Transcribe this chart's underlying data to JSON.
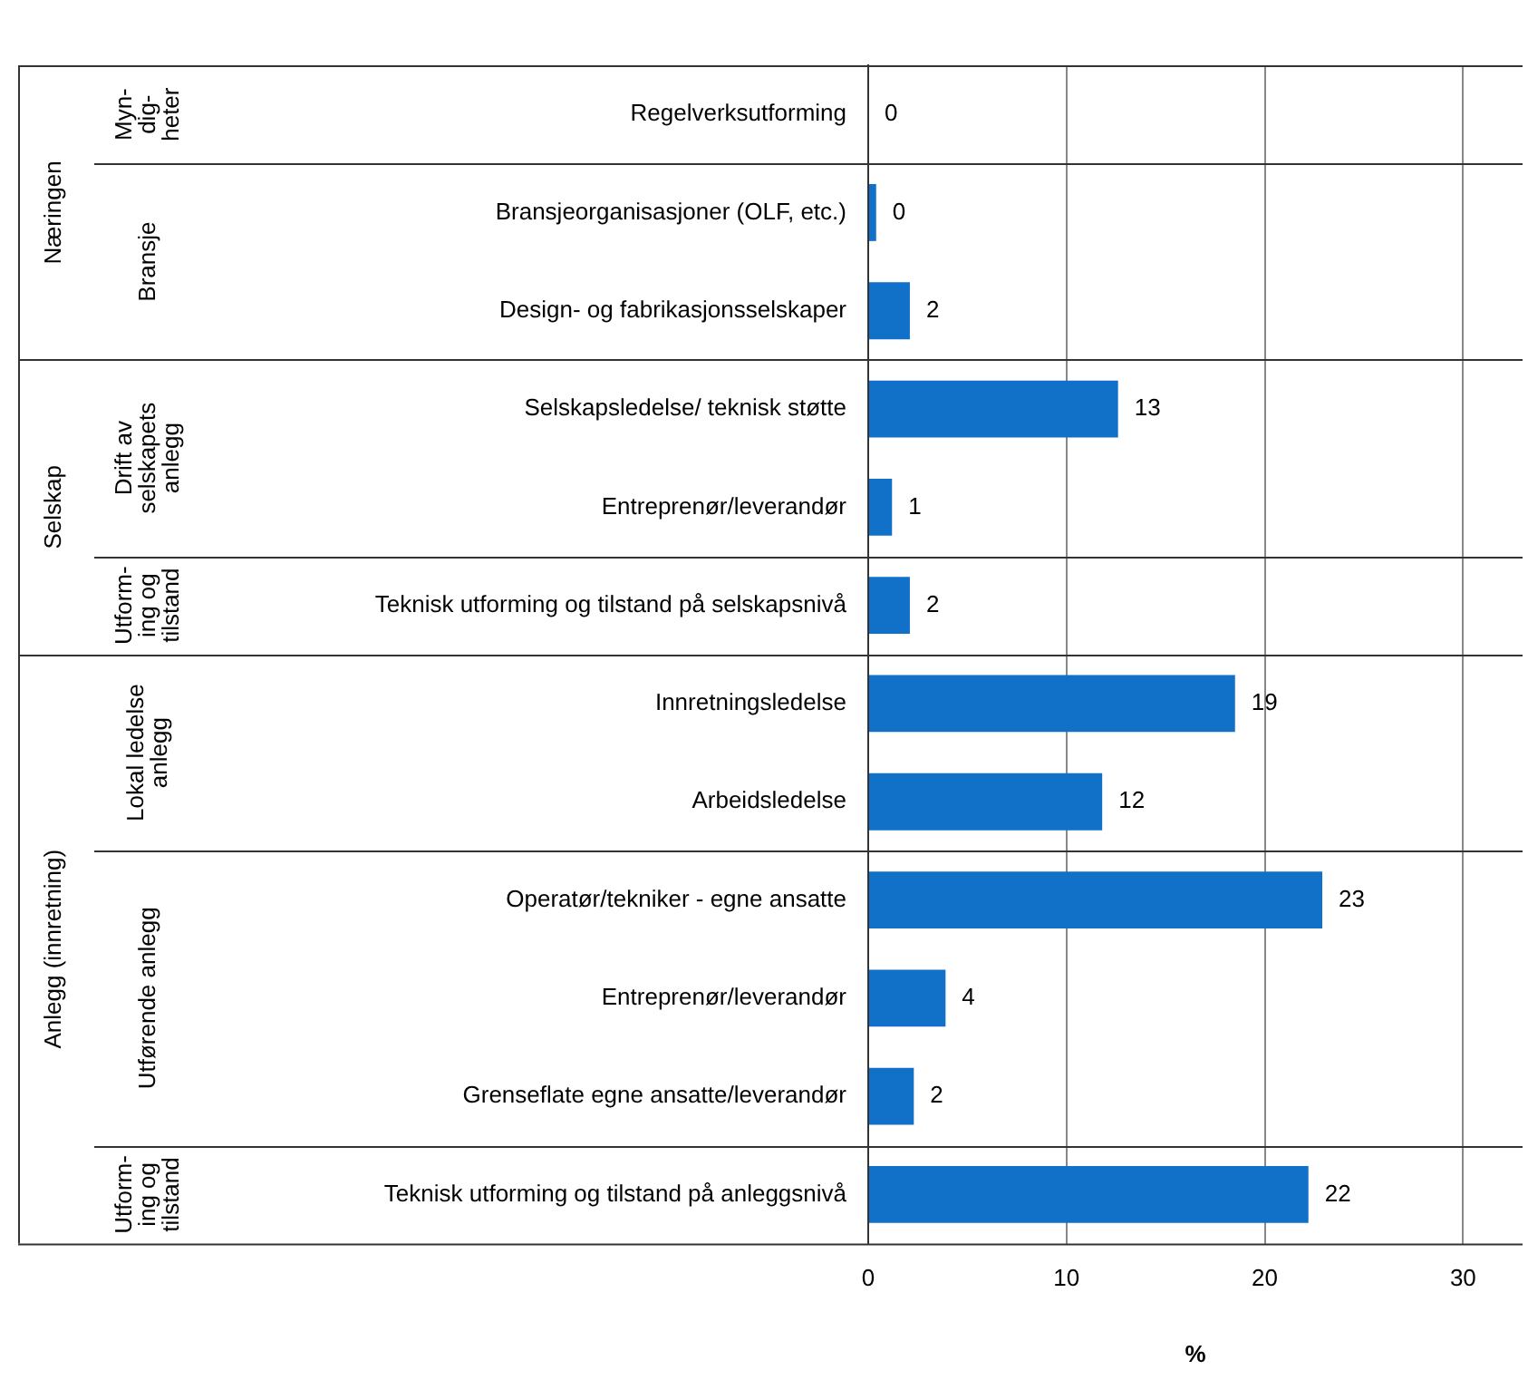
{
  "chart_data": {
    "type": "bar",
    "orientation": "horizontal",
    "categories": [
      "Regelverksutforming",
      "Bransjeorganisasjoner (OLF, etc.)",
      "Design- og fabrikasjonsselskaper",
      "Selskapsledelse/ teknisk støtte",
      "Entreprenør/leverandør",
      "Teknisk utforming og tilstand på selskapsnivå",
      "Innretningsledelse",
      "Arbeidsledelse",
      "Operatør/tekniker - egne ansatte",
      "Entreprenør/leverandør",
      "Grenseflate egne ansatte/leverandør",
      "Teknisk utforming og tilstand på anleggsnivå"
    ],
    "values": [
      0,
      0.4,
      2.1,
      12.6,
      1.2,
      2.1,
      18.5,
      11.8,
      22.9,
      3.9,
      2.3,
      22.2
    ],
    "value_labels": [
      "0",
      "0",
      "2",
      "13",
      "1",
      "2",
      "19",
      "12",
      "23",
      "4",
      "2",
      "22"
    ],
    "color": "#1170c8",
    "xlim": [
      0,
      33
    ],
    "xticks": [
      0,
      10,
      20,
      30
    ],
    "xlabel": "%",
    "grid": "x",
    "legend": false,
    "annotations": [
      "Næringen",
      "Selskap",
      "Anlegg (innretning)",
      "Myn-\ndig-\nheter",
      "Bransje",
      "Drift av\nselskapets\nanlegg",
      "Utform-\ning og\ntilstand",
      "Lokal ledelse\nanlegg",
      "Utførende anlegg",
      "Utform-\ning og\ntilstand"
    ]
  }
}
